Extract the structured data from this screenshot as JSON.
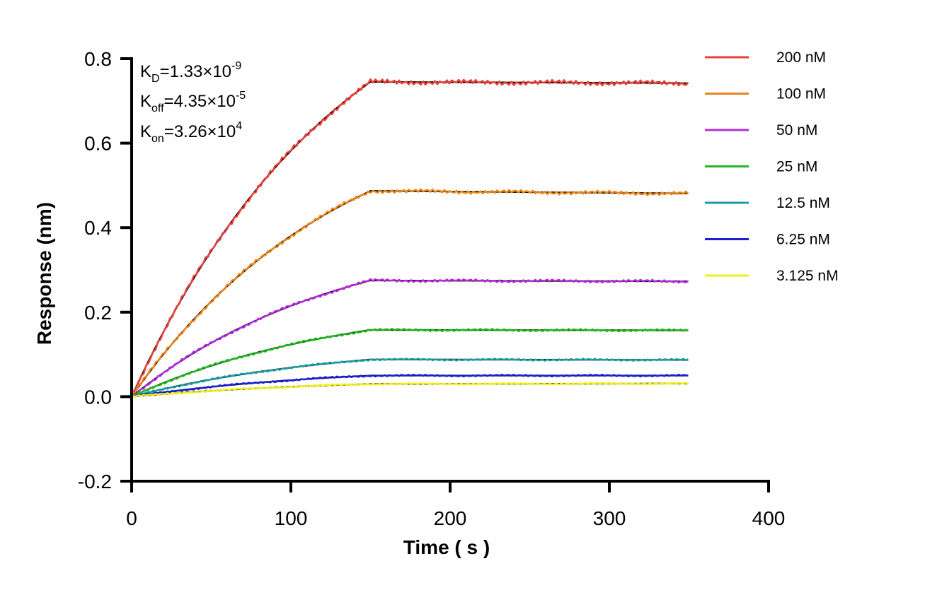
{
  "chart_data": {
    "type": "line",
    "title": "",
    "xlabel": "Time ( s )",
    "ylabel": "Response (nm)",
    "xlim": [
      0,
      400
    ],
    "ylim": [
      -0.2,
      0.8
    ],
    "x_ticks": [
      "0",
      "100",
      "200",
      "300",
      "400"
    ],
    "y_ticks": [
      "-0.2",
      "0.0",
      "0.2",
      "0.4",
      "0.6",
      "0.8"
    ],
    "grid": false,
    "legend_position": "top-right",
    "annotations": {
      "kd": {
        "main": "K",
        "sub": "D",
        "eq": "=1.33×10",
        "sup": "-9"
      },
      "koff": {
        "main": "K",
        "sub": "off",
        "eq": "=4.35×10",
        "sup": "-5"
      },
      "kon": {
        "main": "K",
        "sub": "on",
        "eq": "=3.26×10",
        "sup": "4"
      }
    },
    "association_end": 150,
    "dissociation_end": 350,
    "series": [
      {
        "name": "200 nM",
        "color": "#e8403c",
        "plateau": 0.745,
        "end_value": 0.742
      },
      {
        "name": "100 nM",
        "color": "#e8851c",
        "plateau": 0.487,
        "end_value": 0.481
      },
      {
        "name": "50 nM",
        "color": "#b12fd8",
        "plateau": 0.275,
        "end_value": 0.273
      },
      {
        "name": "25 nM",
        "color": "#22b51f",
        "plateau": 0.158,
        "end_value": 0.157
      },
      {
        "name": "12.5 nM",
        "color": "#1e9da0",
        "plateau": 0.088,
        "end_value": 0.087
      },
      {
        "name": "6.25 nM",
        "color": "#1a1fd0",
        "plateau": 0.05,
        "end_value": 0.05
      },
      {
        "name": "3.125 nM",
        "color": "#f2ee1a",
        "plateau": 0.03,
        "end_value": 0.031
      }
    ],
    "fit_color": "#000000"
  }
}
